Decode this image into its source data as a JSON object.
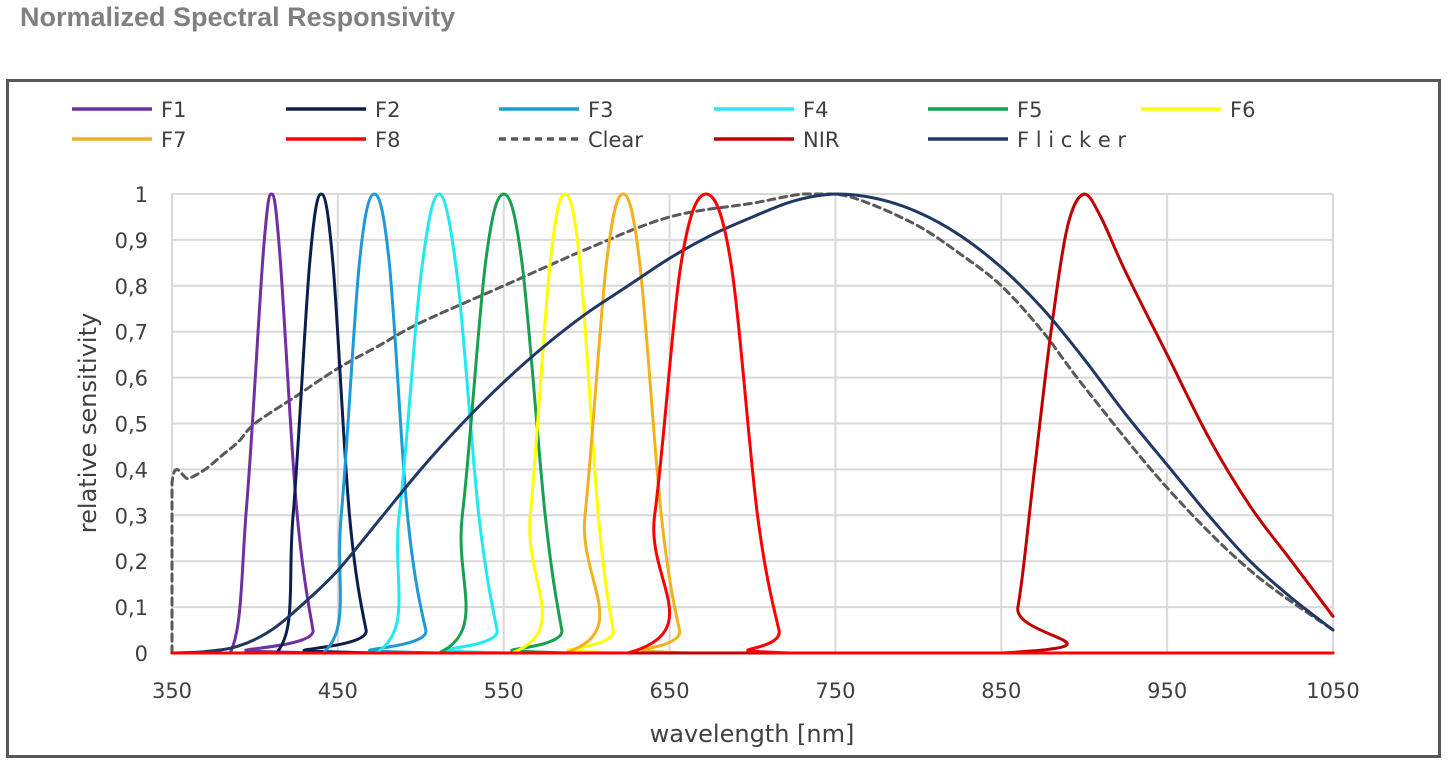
{
  "page": {
    "title": "Normalized Spectral Responsivity"
  },
  "chart_data": {
    "type": "line",
    "title": "",
    "xlabel": "wavelength [nm]",
    "ylabel": "relative sensitivity",
    "xlim": [
      350,
      1050
    ],
    "ylim": [
      0,
      1
    ],
    "x_ticks": [
      350,
      450,
      550,
      650,
      750,
      850,
      950,
      1050
    ],
    "x_tick_labels": [
      "350",
      "450",
      "550",
      "650",
      "750",
      "850",
      "950",
      "1050"
    ],
    "y_ticks": [
      0,
      0.1,
      0.2,
      0.3,
      0.4,
      0.5,
      0.6,
      0.7,
      0.8,
      0.9,
      1
    ],
    "y_tick_labels": [
      "0",
      "0,1",
      "0,2",
      "0,3",
      "0,4",
      "0,5",
      "0,6",
      "0,7",
      "0,8",
      "0,9",
      "1"
    ],
    "grid": true,
    "legend_position": "top",
    "series": [
      {
        "name": "F1",
        "color": "#7030a0",
        "dash": false,
        "x": [
          350,
          385,
          395,
          405,
          410,
          415,
          425,
          435,
          441,
          1050
        ],
        "y": [
          0,
          0,
          0.32,
          0.87,
          1,
          0.87,
          0.32,
          0.05,
          0,
          0
        ]
      },
      {
        "name": "F2",
        "color": "#0b1f4f",
        "dash": false,
        "x": [
          350,
          413,
          423,
          433,
          440,
          447,
          457,
          467,
          474,
          1050
        ],
        "y": [
          0,
          0,
          0.3,
          0.85,
          1,
          0.85,
          0.3,
          0.05,
          0,
          0
        ]
      },
      {
        "name": "F3",
        "color": "#1e9bd7",
        "dash": false,
        "x": [
          350,
          441,
          452,
          463,
          472,
          481,
          492,
          503,
          511,
          1050
        ],
        "y": [
          0,
          0,
          0.3,
          0.85,
          1,
          0.85,
          0.3,
          0.05,
          0,
          0
        ]
      },
      {
        "name": "F4",
        "color": "#22e8f0",
        "dash": false,
        "x": [
          350,
          473,
          487,
          500,
          511,
          522,
          535,
          546,
          552,
          1050
        ],
        "y": [
          0,
          0,
          0.3,
          0.82,
          1,
          0.82,
          0.3,
          0.05,
          0,
          0
        ]
      },
      {
        "name": "F5",
        "color": "#18a050",
        "dash": false,
        "x": [
          350,
          511,
          525,
          539,
          550,
          561,
          575,
          585,
          590,
          1050
        ],
        "y": [
          0,
          0,
          0.3,
          0.85,
          1,
          0.85,
          0.3,
          0.05,
          0,
          0
        ]
      },
      {
        "name": "F6",
        "color": "#ffff00",
        "dash": false,
        "x": [
          350,
          555,
          566,
          578,
          587,
          596,
          607,
          616,
          622,
          1050
        ],
        "y": [
          0,
          0,
          0.3,
          0.85,
          1,
          0.85,
          0.3,
          0.05,
          0,
          0
        ]
      },
      {
        "name": "F7",
        "color": "#f4b11e",
        "dash": false,
        "x": [
          350,
          587,
          599,
          612,
          622,
          632,
          645,
          656,
          664,
          1050
        ],
        "y": [
          0,
          0,
          0.3,
          0.85,
          1,
          0.85,
          0.3,
          0.05,
          0,
          0
        ]
      },
      {
        "name": "F8",
        "color": "#ff0000",
        "dash": false,
        "x": [
          350,
          625,
          641,
          657,
          672,
          687,
          703,
          716,
          723,
          1050
        ],
        "y": [
          0,
          0,
          0.3,
          0.85,
          1,
          0.85,
          0.3,
          0.05,
          0,
          0
        ]
      },
      {
        "name": "Clear",
        "color": "#595959",
        "dash": true,
        "x": [
          350,
          350,
          360,
          370,
          380,
          390,
          400,
          425,
          450,
          475,
          500,
          550,
          600,
          650,
          700,
          730,
          750,
          770,
          800,
          825,
          850,
          875,
          900,
          950,
          1000,
          1050
        ],
        "y": [
          0,
          0.37,
          0.38,
          0.4,
          0.43,
          0.46,
          0.5,
          0.56,
          0.62,
          0.67,
          0.72,
          0.8,
          0.88,
          0.95,
          0.98,
          1,
          1,
          0.98,
          0.93,
          0.87,
          0.8,
          0.7,
          0.58,
          0.36,
          0.18,
          0.05
        ]
      },
      {
        "name": "NIR",
        "color": "#c00000",
        "dash": false,
        "x": [
          350,
          850,
          860,
          870,
          880,
          890,
          900,
          910,
          925,
          950,
          975,
          1000,
          1025,
          1050
        ],
        "y": [
          0,
          0,
          0.1,
          0.4,
          0.7,
          0.93,
          1,
          0.95,
          0.83,
          0.65,
          0.47,
          0.32,
          0.2,
          0.08
        ]
      },
      {
        "name": "F l i c k e r",
        "color": "#203864",
        "dash": false,
        "x": [
          350,
          370,
          390,
          410,
          430,
          450,
          475,
          500,
          525,
          550,
          575,
          600,
          625,
          650,
          675,
          700,
          725,
          750,
          775,
          800,
          825,
          850,
          875,
          900,
          925,
          950,
          975,
          1000,
          1025,
          1050
        ],
        "y": [
          0,
          0.003,
          0.015,
          0.05,
          0.11,
          0.18,
          0.29,
          0.4,
          0.5,
          0.59,
          0.67,
          0.74,
          0.8,
          0.86,
          0.91,
          0.95,
          0.985,
          1,
          0.99,
          0.96,
          0.91,
          0.84,
          0.75,
          0.64,
          0.52,
          0.41,
          0.3,
          0.2,
          0.12,
          0.05
        ]
      }
    ]
  }
}
